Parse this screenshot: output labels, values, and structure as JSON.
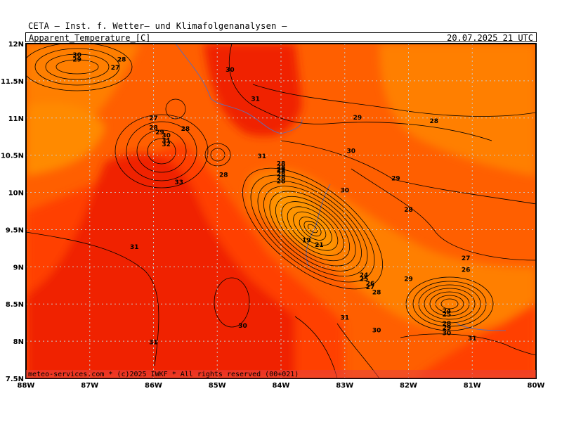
{
  "header": {
    "title": "CETA — Inst. f. Wetter— und Klimafolgenanalysen —",
    "parameter": "Apparent_Temperature_[C]",
    "valid_time": "20.07.2025 21 UTC"
  },
  "footer": {
    "credit": "meteo-services.com * (c)2025 IWKF * All rights reserved (00+021)"
  },
  "map": {
    "lat_labels": [
      "12N",
      "11.5N",
      "11N",
      "10.5N",
      "10N",
      "9.5N",
      "9N",
      "8.5N",
      "8N",
      "7.5N"
    ],
    "lon_labels": [
      "88W",
      "87W",
      "86W",
      "85W",
      "84W",
      "83W",
      "82W",
      "81W",
      "80W"
    ],
    "shading_colors": {
      "c27": "#ff7f00",
      "c29": "#ff5f00",
      "c31": "#ff3f00",
      "c33": "#f02000",
      "c35": "#e01000",
      "grid": "#c8c8c8",
      "land": "#7070a0",
      "contour": "#000000"
    },
    "contour_labels": [
      {
        "t": "30",
        "lon": -87.2,
        "lat": 11.82
      },
      {
        "t": "29",
        "lon": -87.2,
        "lat": 11.76
      },
      {
        "t": "28",
        "lon": -86.5,
        "lat": 11.76
      },
      {
        "t": "27",
        "lon": -86.6,
        "lat": 11.65
      },
      {
        "t": "30",
        "lon": -84.8,
        "lat": 11.62
      },
      {
        "t": "31",
        "lon": -84.4,
        "lat": 11.23
      },
      {
        "t": "29",
        "lon": -82.8,
        "lat": 10.98
      },
      {
        "t": "28",
        "lon": -81.6,
        "lat": 10.93
      },
      {
        "t": "27",
        "lon": -86.0,
        "lat": 10.97
      },
      {
        "t": "28",
        "lon": -86.0,
        "lat": 10.84
      },
      {
        "t": "28",
        "lon": -85.5,
        "lat": 10.83
      },
      {
        "t": "29",
        "lon": -85.9,
        "lat": 10.78
      },
      {
        "t": "30",
        "lon": -85.8,
        "lat": 10.74
      },
      {
        "t": "31",
        "lon": -85.8,
        "lat": 10.67
      },
      {
        "t": "32",
        "lon": -85.8,
        "lat": 10.62
      },
      {
        "t": "30",
        "lon": -82.9,
        "lat": 10.53
      },
      {
        "t": "31",
        "lon": -84.3,
        "lat": 10.46
      },
      {
        "t": "28",
        "lon": -84.0,
        "lat": 10.36
      },
      {
        "t": "29",
        "lon": -84.0,
        "lat": 10.28
      },
      {
        "t": "28",
        "lon": -84.9,
        "lat": 10.21
      },
      {
        "t": "29",
        "lon": -82.2,
        "lat": 10.16
      },
      {
        "t": "33",
        "lon": -85.6,
        "lat": 10.11
      },
      {
        "t": "30",
        "lon": -83.0,
        "lat": 10.0
      },
      {
        "t": "28",
        "lon": -82.0,
        "lat": 9.74
      },
      {
        "t": "19",
        "lon": -83.6,
        "lat": 9.33
      },
      {
        "t": "21",
        "lon": -83.4,
        "lat": 9.27
      },
      {
        "t": "31",
        "lon": -86.3,
        "lat": 9.24
      },
      {
        "t": "27",
        "lon": -81.1,
        "lat": 9.09
      },
      {
        "t": "26",
        "lon": -81.1,
        "lat": 8.93
      },
      {
        "t": "24",
        "lon": -82.7,
        "lat": 8.86
      },
      {
        "t": "25",
        "lon": -82.7,
        "lat": 8.81
      },
      {
        "t": "26",
        "lon": -82.6,
        "lat": 8.75
      },
      {
        "t": "27",
        "lon": -82.6,
        "lat": 8.7
      },
      {
        "t": "29",
        "lon": -82.0,
        "lat": 8.81
      },
      {
        "t": "28",
        "lon": -82.5,
        "lat": 8.63
      },
      {
        "t": "24",
        "lon": -81.4,
        "lat": 8.38
      },
      {
        "t": "25",
        "lon": -81.4,
        "lat": 8.33
      },
      {
        "t": "31",
        "lon": -83.0,
        "lat": 8.29
      },
      {
        "t": "30",
        "lon": -84.6,
        "lat": 8.18
      },
      {
        "t": "28",
        "lon": -81.4,
        "lat": 8.21
      },
      {
        "t": "29",
        "lon": -81.4,
        "lat": 8.15
      },
      {
        "t": "30",
        "lon": -82.5,
        "lat": 8.12
      },
      {
        "t": "30",
        "lon": -81.4,
        "lat": 8.08
      },
      {
        "t": "31",
        "lon": -81.0,
        "lat": 8.01
      },
      {
        "t": "31",
        "lon": -86.0,
        "lat": 7.96
      }
    ],
    "stacked_max_label": {
      "t": "28",
      "lon": -84.0,
      "lat": 10.37
    }
  }
}
